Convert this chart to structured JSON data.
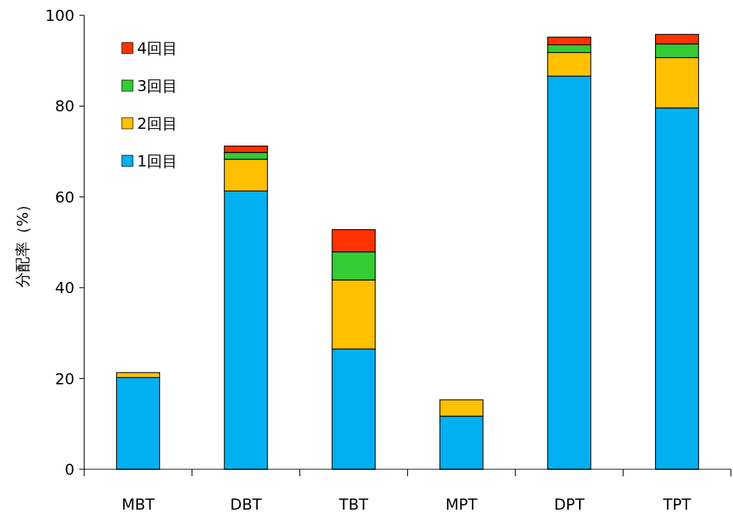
{
  "chart_data": {
    "type": "bar",
    "stacked": true,
    "ylabel": "分配率（%）",
    "categories": [
      "MBT",
      "DBT",
      "TBT",
      "MPT",
      "DPT",
      "TPT"
    ],
    "series": [
      {
        "name": "1回目",
        "color": "#00b0f0",
        "values": [
          20.2,
          61.3,
          26.5,
          11.7,
          86.6,
          79.6
        ]
      },
      {
        "name": "2回目",
        "color": "#ffc000",
        "values": [
          1.1,
          7.0,
          15.2,
          3.6,
          5.2,
          11.1
        ]
      },
      {
        "name": "3回目",
        "color": "#33cc33",
        "values": [
          0,
          1.5,
          6.2,
          0,
          1.7,
          3.0
        ]
      },
      {
        "name": "4回目",
        "color": "#ff3300",
        "values": [
          0,
          1.4,
          4.9,
          0,
          1.7,
          2.1
        ]
      }
    ],
    "ylim": [
      0,
      100
    ],
    "yticks": [
      0,
      20,
      40,
      60,
      80,
      100
    ],
    "grid": false,
    "legend": "top left"
  }
}
